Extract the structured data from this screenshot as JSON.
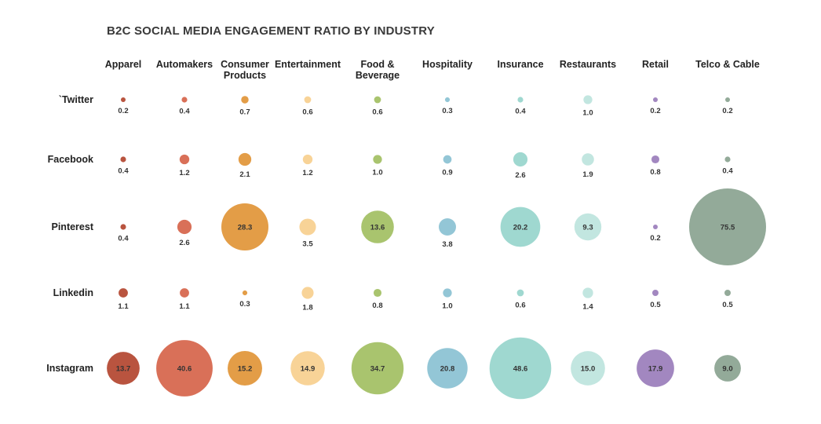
{
  "chart_data": {
    "type": "bubble-matrix",
    "title": "B2C SOCIAL MEDIA ENGAGEMENT RATIO BY INDUSTRY",
    "columns": [
      {
        "name": "Apparel",
        "label_lines": [
          "Apparel"
        ],
        "color": "#b9543f"
      },
      {
        "name": "Automakers",
        "label_lines": [
          "Automakers"
        ],
        "color": "#d97058"
      },
      {
        "name": "Consumer Products",
        "label_lines": [
          "Consumer",
          "Products"
        ],
        "color": "#e39d47"
      },
      {
        "name": "Entertainment",
        "label_lines": [
          "Entertainment"
        ],
        "color": "#f8d397"
      },
      {
        "name": "Food & Beverage",
        "label_lines": [
          "Food &",
          "Beverage"
        ],
        "color": "#a9c46e"
      },
      {
        "name": "Hospitality",
        "label_lines": [
          "Hospitality"
        ],
        "color": "#93c6d6"
      },
      {
        "name": "Insurance",
        "label_lines": [
          "Insurance"
        ],
        "color": "#9fd8d0"
      },
      {
        "name": "Restaurants",
        "label_lines": [
          "Restaurants"
        ],
        "color": "#c2e6e0"
      },
      {
        "name": "Retail",
        "label_lines": [
          "Retail"
        ],
        "color": "#a287c0"
      },
      {
        "name": "Telco & Cable",
        "label_lines": [
          "Telco & Cable"
        ],
        "color": "#93aa99"
      }
    ],
    "rows": [
      "`Twitter",
      "Facebook",
      "Pinterest",
      "Linkedin",
      "Instagram"
    ],
    "values": [
      [
        0.2,
        0.4,
        0.7,
        0.6,
        0.6,
        0.3,
        0.4,
        1.0,
        0.2,
        0.2
      ],
      [
        0.4,
        1.2,
        2.1,
        1.2,
        1.0,
        0.9,
        2.6,
        1.9,
        0.8,
        0.4
      ],
      [
        0.4,
        2.6,
        28.3,
        3.5,
        13.6,
        3.8,
        20.2,
        9.3,
        0.2,
        75.5
      ],
      [
        1.1,
        1.1,
        0.3,
        1.8,
        0.8,
        1.0,
        0.6,
        1.4,
        0.5,
        0.5
      ],
      [
        13.7,
        40.6,
        15.2,
        14.9,
        34.7,
        20.8,
        48.6,
        15.0,
        17.9,
        9.0
      ]
    ],
    "value_labels": [
      [
        "0.2",
        "0.4",
        "0.7",
        "0.6",
        "0.6",
        "0.3",
        "0.4",
        "1.0",
        "0.2",
        "0.2"
      ],
      [
        "0.4",
        "1.2",
        "2.1",
        "1.2",
        "1.0",
        "0.9",
        "2.6",
        "1.9",
        "0.8",
        "0.4"
      ],
      [
        "0.4",
        "2.6",
        "28.3",
        "3.5",
        "13.6",
        "3.8",
        "20.2",
        "9.3",
        "0.2",
        "75.5"
      ],
      [
        "1.1",
        "1.1",
        "0.3",
        "1.8",
        "0.8",
        "1.0",
        "0.6",
        "1.4",
        "0.5",
        "0.5"
      ],
      [
        "13.7",
        "40.6",
        "15.2",
        "14.9",
        "34.7",
        "20.8",
        "48.6",
        "15.0",
        "17.9",
        "9.0"
      ]
    ],
    "inside_label_threshold": 9,
    "legend": "none",
    "grid": false
  }
}
